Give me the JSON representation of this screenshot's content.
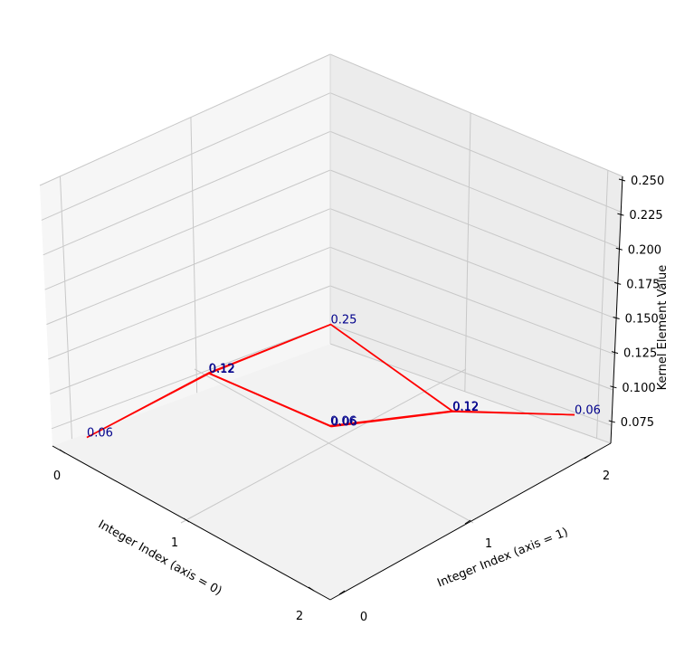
{
  "chart_data": {
    "type": "line",
    "subtype": "3d-wireframe",
    "title": "",
    "xlabel": "Integer Index (axis = 0)",
    "ylabel": "Integer Index (axis = 1)",
    "zlabel": "Kernel Element Value",
    "x_ticks": [
      "0",
      "1",
      "2"
    ],
    "y_ticks": [
      "0",
      "1",
      "2"
    ],
    "z_ticks": [
      "0.075",
      "0.100",
      "0.125",
      "0.150",
      "0.175",
      "0.200",
      "0.225",
      "0.250"
    ],
    "zlim": [
      0.0625,
      0.25
    ],
    "grid": true,
    "series_color": "#ff0000",
    "label_color": "#00008b",
    "values": [
      [
        0.0625,
        0.125,
        0.0625
      ],
      [
        0.125,
        0.25,
        0.125
      ],
      [
        0.0625,
        0.125,
        0.0625
      ]
    ],
    "labels": [
      [
        "0.06",
        "0.12",
        "0.06"
      ],
      [
        "0.12",
        "0.25",
        "0.12"
      ],
      [
        "0.06",
        "0.12",
        "0.06"
      ]
    ]
  }
}
